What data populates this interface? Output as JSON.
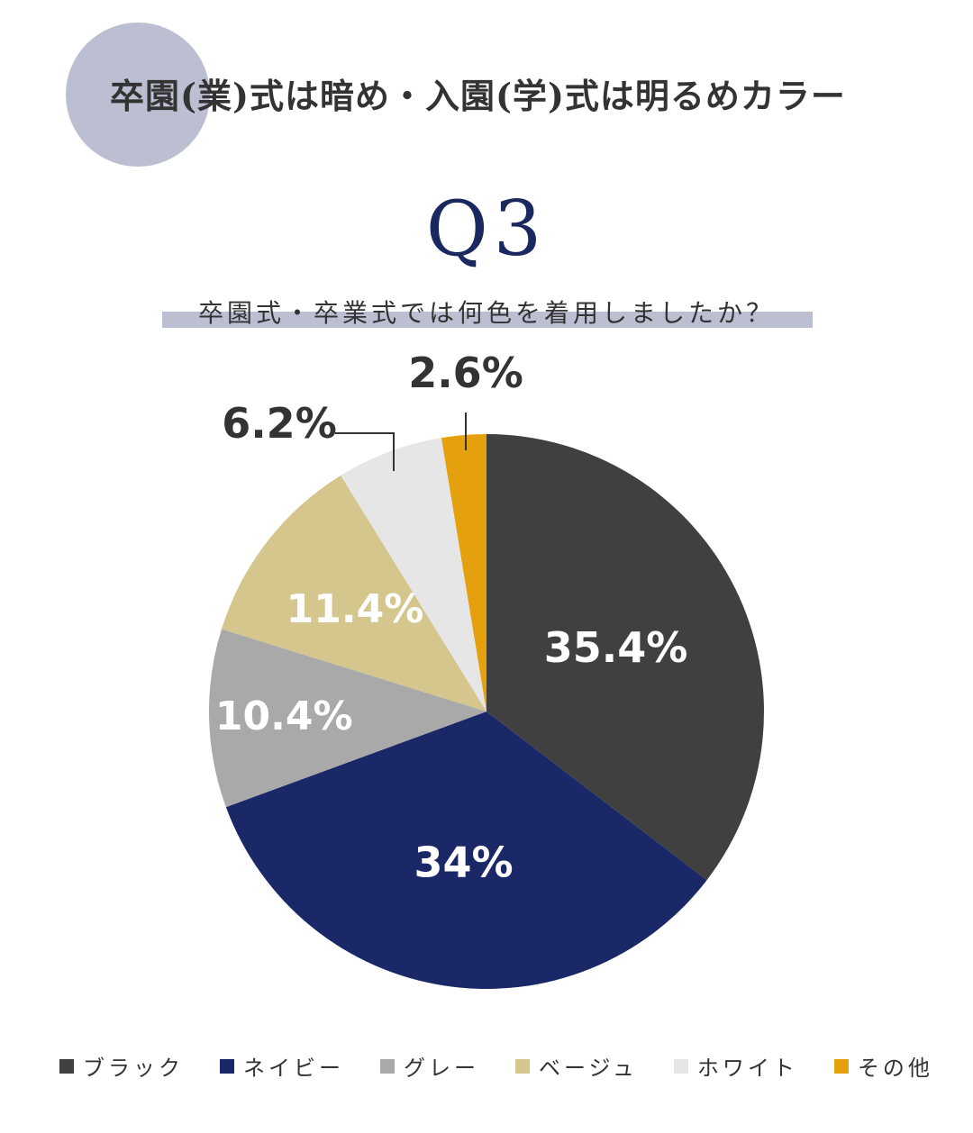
{
  "header": {
    "title": "卒園(業)式は暗め・入園(学)式は明るめカラー",
    "circle_color": "#bcbfd2"
  },
  "question": {
    "number": "Q3",
    "text": "卒園式・卒業式では何色を着用しましたか？",
    "number_color": "#1b2860",
    "bar_color": "#bcbfd2"
  },
  "chart_data": {
    "type": "pie",
    "start": "12 o'clock",
    "direction": "clockwise",
    "slices": [
      {
        "name": "ブラック",
        "value": 35.4,
        "label": "35.4%",
        "color": "#404040",
        "label_color": "#ffffff"
      },
      {
        "name": "ネイビー",
        "value": 34,
        "label": "34%",
        "color": "#1b2868",
        "label_color": "#ffffff"
      },
      {
        "name": "グレー",
        "value": 10.4,
        "label": "10.4%",
        "color": "#a9a9a9",
        "label_color": "#ffffff"
      },
      {
        "name": "ベージュ",
        "value": 11.4,
        "label": "11.4%",
        "color": "#d4c68d",
        "label_color": "#ffffff"
      },
      {
        "name": "ホワイト",
        "value": 6.2,
        "label": "6.2%",
        "color": "#e6e6e6",
        "label_color": "#333333"
      },
      {
        "name": "その他",
        "value": 2.6,
        "label": "2.6%",
        "color": "#e5a00d",
        "label_color": "#333333"
      }
    ],
    "legend_position": "bottom"
  }
}
